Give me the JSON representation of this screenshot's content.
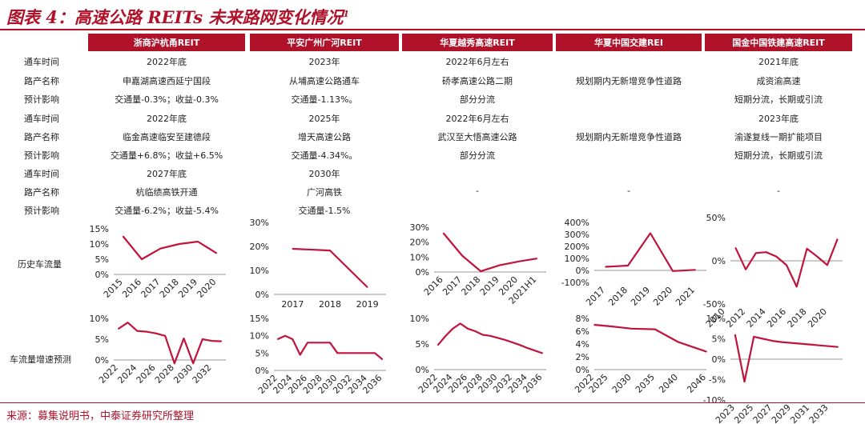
{
  "title": "图表 4：高速公路 REITs 未来路网变化情况",
  "title_sup": "1",
  "columns": [
    "浙商沪杭甬REIT",
    "平安广州广河REIT",
    "华夏越秀高速REIT",
    "华夏中国交建REI",
    "国金中国铁建高速REIT"
  ],
  "row_labels": [
    "通车时间",
    "路产名称",
    "预计影响",
    "通车时间",
    "路产名称",
    "预计影响",
    "通车时间",
    "路产名称",
    "预计影响"
  ],
  "table": [
    [
      "2022年底",
      "2023年",
      "2022年6月左右",
      "",
      "2021年底"
    ],
    [
      "申嘉湖高速西延宁国段",
      "从埔高速公路通车",
      "硚孝高速公路二期",
      "规划期内无新增竞争性道路",
      "成资渝高速"
    ],
    [
      "交通量-0.3%；收益-0.3%",
      "交通量-1.13%。",
      "部分分流",
      "",
      "短期分流，长期或引流"
    ],
    [
      "2022年底",
      "2025年",
      "2022年6月左右",
      "",
      "2023年底"
    ],
    [
      "临金高速临安至建德段",
      "增天高速公路",
      "武汉至大悟高速公路",
      "规划期内无新增竞争性道路",
      "渝遂复线一期扩能项目"
    ],
    [
      "交通量+6.8%；收益+6.5%",
      "交通量-4.34%。",
      "部分分流",
      "",
      "短期分流，长期或引流"
    ],
    [
      "2027年底",
      "2030年",
      "",
      "",
      ""
    ],
    [
      "杭临绩高铁开通",
      "广河高铁",
      "-",
      "-",
      "-"
    ],
    [
      "交通量-6.2%；收益-5.4%",
      "交通量-1.5%",
      "",
      "",
      ""
    ]
  ],
  "history_label": "历史车流量",
  "forecast_label": "车流量增速预测",
  "footer": "来源：募集说明书，中泰证券研究所整理",
  "line_color": "#c0143c",
  "chart_data": [
    {
      "type": "line",
      "group": "history",
      "column": "浙商沪杭甬REIT",
      "x": [
        "2015",
        "2016",
        "2017",
        "2018",
        "2019",
        "2020"
      ],
      "values": [
        12.5,
        5.0,
        8.5,
        10.0,
        10.8,
        7.0
      ],
      "ylim": [
        0,
        15
      ],
      "yticks": [
        "0%",
        "5%",
        "10%",
        "15%"
      ],
      "ytick_values": [
        0,
        5,
        10,
        15
      ],
      "xlabel_rotate": true
    },
    {
      "type": "line",
      "group": "history",
      "column": "平安广州广河REIT",
      "x": [
        "2017",
        "2018",
        "2019"
      ],
      "values": [
        19.0,
        18.3,
        3.0
      ],
      "ylim": [
        0,
        30
      ],
      "yticks": [
        "0%",
        "10%",
        "20%",
        "30%"
      ],
      "ytick_values": [
        0,
        10,
        20,
        30
      ],
      "xlabel_rotate": false
    },
    {
      "type": "line",
      "group": "history",
      "column": "华夏越秀高速REIT",
      "x": [
        "2016",
        "2017",
        "2018",
        "2019",
        "2020",
        "2021H1"
      ],
      "values": [
        26.0,
        11.0,
        0.5,
        4.5,
        7.0,
        9.0
      ],
      "ylim": [
        0,
        30
      ],
      "yticks": [
        "0%",
        "10%",
        "20%",
        "30%"
      ],
      "ytick_values": [
        0,
        10,
        20,
        30
      ],
      "xlabel_rotate": true
    },
    {
      "type": "line",
      "group": "history",
      "column": "华夏中国交建REI",
      "x": [
        "2017",
        "2018",
        "2019",
        "2020",
        "2021"
      ],
      "values": [
        30,
        40,
        310,
        -5,
        5
      ],
      "ylim": [
        -100,
        400
      ],
      "yticks": [
        "-100%",
        "0%",
        "100%",
        "200%",
        "300%",
        "400%"
      ],
      "ytick_values": [
        -100,
        0,
        100,
        200,
        300,
        400
      ],
      "xlabel_rotate": true
    },
    {
      "type": "line",
      "group": "history",
      "column": "国金中国铁建高速REIT",
      "x": [
        "2011",
        "2012",
        "2013",
        "2014",
        "2015",
        "2016",
        "2017",
        "2018",
        "2019",
        "2020",
        "2021"
      ],
      "values": [
        15,
        -10,
        9,
        10,
        5,
        -5,
        -30,
        14,
        5,
        -5,
        25
      ],
      "ylim": [
        -50,
        50
      ],
      "yticks": [
        "-50%",
        "0%",
        "50%"
      ],
      "ytick_values": [
        -50,
        0,
        50
      ],
      "xticks": [
        "2010",
        "2012",
        "2014",
        "2016",
        "2018",
        "2020"
      ],
      "xlabel_rotate": true
    },
    {
      "type": "line",
      "group": "forecast",
      "column": "浙商沪杭甬REIT",
      "x": [
        "2022",
        "2023",
        "2024",
        "2025",
        "2026",
        "2027",
        "2028",
        "2029",
        "2030",
        "2031",
        "2032",
        "2033"
      ],
      "values": [
        7.5,
        9.0,
        7.0,
        6.8,
        6.4,
        5.8,
        -0.8,
        5.2,
        -0.8,
        5.0,
        4.6,
        4.5
      ],
      "ylim": [
        0,
        10
      ],
      "yticks": [
        "0%",
        "5%",
        "10%"
      ],
      "ytick_values": [
        0,
        5,
        10
      ],
      "xticks": [
        "2022",
        "2024",
        "2026",
        "2028",
        "2030",
        "2032"
      ],
      "xlabel_rotate": true
    },
    {
      "type": "line",
      "group": "forecast",
      "column": "平安广州广河REIT",
      "x": [
        "2022",
        "2023",
        "2024",
        "2025",
        "2026",
        "2027",
        "2028",
        "2029",
        "2030",
        "2031",
        "2032",
        "2033",
        "2034",
        "2035",
        "2036"
      ],
      "values": [
        9.0,
        10.0,
        9.0,
        4.5,
        8.0,
        8.0,
        8.0,
        8.0,
        5.0,
        5.0,
        5.0,
        5.0,
        5.0,
        5.0,
        3.2
      ],
      "ylim": [
        0,
        15
      ],
      "yticks": [
        "0%",
        "5%",
        "10%",
        "15%"
      ],
      "ytick_values": [
        0,
        5,
        10,
        15
      ],
      "xticks": [
        "2022",
        "2024",
        "2026",
        "2028",
        "2030",
        "2032",
        "2034",
        "2036"
      ],
      "xlabel_rotate": true
    },
    {
      "type": "line",
      "group": "forecast",
      "column": "华夏越秀高速REIT",
      "x": [
        "2022",
        "2023",
        "2024",
        "2025",
        "2026",
        "2027",
        "2028",
        "2029",
        "2030",
        "2031",
        "2032",
        "2033",
        "2034",
        "2035",
        "2036"
      ],
      "values": [
        4.8,
        6.5,
        8.0,
        9.0,
        8.0,
        7.5,
        6.8,
        6.6,
        6.2,
        5.8,
        5.3,
        4.8,
        4.2,
        3.7,
        3.2
      ],
      "ylim": [
        0,
        10
      ],
      "yticks": [
        "0%",
        "5%",
        "10%"
      ],
      "ytick_values": [
        0,
        5,
        10
      ],
      "xticks": [
        "2022",
        "2024",
        "2026",
        "2028",
        "2030",
        "2032",
        "2034",
        "2036"
      ],
      "xlabel_rotate": true
    },
    {
      "type": "line",
      "group": "forecast",
      "column": "华夏中国交建REI",
      "x": [
        "2022",
        "2025",
        "2030",
        "2035",
        "2040",
        "2046"
      ],
      "x_values": [
        2022,
        2025,
        2030,
        2035,
        2040,
        2046
      ],
      "values": [
        7.0,
        6.8,
        6.4,
        6.3,
        4.3,
        2.8
      ],
      "ylim": [
        0,
        8
      ],
      "yticks": [
        "0%",
        "2%",
        "4%",
        "6%",
        "8%"
      ],
      "ytick_values": [
        0,
        2,
        4,
        6,
        8
      ],
      "xlabel_rotate": true
    },
    {
      "type": "line",
      "group": "forecast",
      "column": "国金中国铁建高速REIT",
      "x": [
        "2023",
        "2024",
        "2025",
        "2026",
        "2027",
        "2028",
        "2029",
        "2030",
        "2031",
        "2032",
        "2033",
        "2034"
      ],
      "values": [
        6.0,
        -5.5,
        5.5,
        5.0,
        4.5,
        4.2,
        4.0,
        3.8,
        3.6,
        3.4,
        3.2,
        3.0
      ],
      "ylim": [
        -10,
        10
      ],
      "yticks": [
        "-10%",
        "-5%",
        "0%",
        "5%",
        "10%"
      ],
      "ytick_values": [
        -10,
        -5,
        0,
        5,
        10
      ],
      "xticks": [
        "2023",
        "2025",
        "2027",
        "2029",
        "2031",
        "2033"
      ],
      "xlabel_rotate": true
    }
  ]
}
